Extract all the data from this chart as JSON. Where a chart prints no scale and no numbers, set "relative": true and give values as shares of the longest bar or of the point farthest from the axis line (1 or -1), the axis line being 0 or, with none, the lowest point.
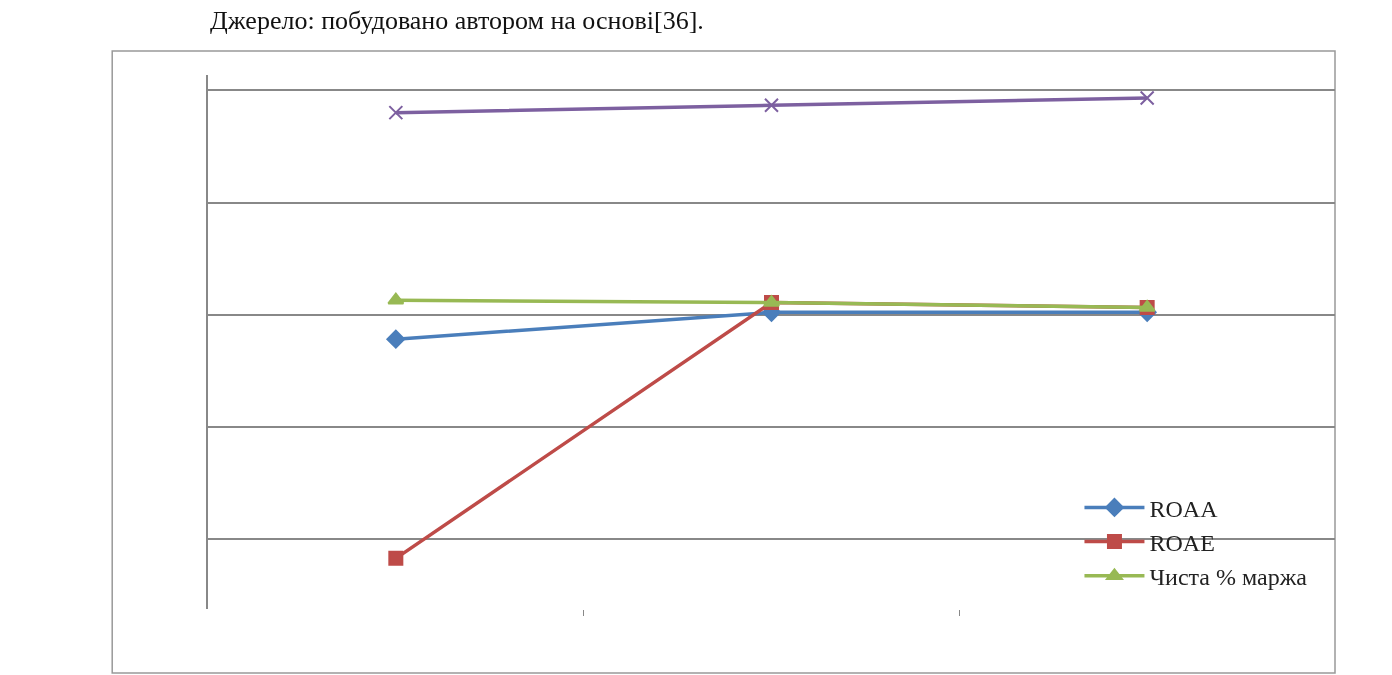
{
  "chart_data": {
    "type": "line",
    "relative": true,
    "annotations": [
      "Джерело: побудовано автором на основі[36]."
    ],
    "categories": [
      null,
      null,
      null
    ],
    "series": [
      {
        "name": "ROAA",
        "color": "#4a7ebb",
        "marker": "diamond",
        "values": [
          -0.1,
          0.01,
          0.01
        ]
      },
      {
        "name": "ROAE",
        "color": "#be4b48",
        "marker": "square",
        "values": [
          -1,
          0.05,
          0.03
        ]
      },
      {
        "name": "Чиста % маржа",
        "color": "#98b954",
        "marker": "triangle",
        "values": [
          0.06,
          0.05,
          0.03
        ]
      },
      {
        "color": "#7d60a0",
        "marker": "cross",
        "values": [
          0.83,
          0.86,
          0.89
        ]
      }
    ],
    "grid": "y",
    "legend": "bottom right",
    "line_style": "solid"
  }
}
